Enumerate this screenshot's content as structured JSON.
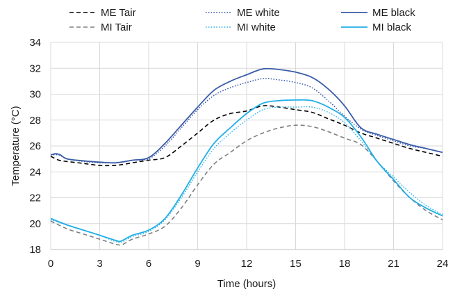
{
  "chart_data": {
    "type": "line",
    "title": "",
    "xlabel": "Time (hours)",
    "ylabel": "Temperature (°C)",
    "xlim": [
      0,
      24
    ],
    "ylim": [
      18,
      34
    ],
    "xticks": [
      0,
      3,
      6,
      9,
      12,
      15,
      18,
      21,
      24
    ],
    "yticks": [
      18,
      20,
      22,
      24,
      26,
      28,
      30,
      32,
      34
    ],
    "grid": "vertical",
    "legend_position": "top",
    "series": [
      {
        "name": "ME Tair",
        "color": "#000000",
        "dash": "dashed",
        "points": [
          [
            0,
            25.2
          ],
          [
            0.5,
            24.9
          ],
          [
            1,
            24.8
          ],
          [
            2,
            24.65
          ],
          [
            3,
            24.5
          ],
          [
            4,
            24.5
          ],
          [
            5,
            24.7
          ],
          [
            6,
            24.9
          ],
          [
            7,
            25.1
          ],
          [
            8,
            26.0
          ],
          [
            9,
            27.0
          ],
          [
            10,
            28.0
          ],
          [
            11,
            28.5
          ],
          [
            12,
            28.7
          ],
          [
            13,
            29.1
          ],
          [
            14,
            29.0
          ],
          [
            15,
            28.8
          ],
          [
            16,
            28.6
          ],
          [
            17,
            28.1
          ],
          [
            18,
            27.6
          ],
          [
            19,
            27.0
          ],
          [
            20,
            26.6
          ],
          [
            21,
            26.2
          ],
          [
            22,
            25.8
          ],
          [
            23,
            25.5
          ],
          [
            24,
            25.2
          ]
        ]
      },
      {
        "name": "MI Tair",
        "color": "#7f7f7f",
        "dash": "dashed",
        "points": [
          [
            0,
            20.2
          ],
          [
            1,
            19.6
          ],
          [
            2,
            19.2
          ],
          [
            3,
            18.8
          ],
          [
            4,
            18.4
          ],
          [
            4.4,
            18.4
          ],
          [
            5,
            18.8
          ],
          [
            6,
            19.2
          ],
          [
            7,
            19.8
          ],
          [
            8,
            21.2
          ],
          [
            9,
            23.0
          ],
          [
            10,
            24.6
          ],
          [
            11,
            25.5
          ],
          [
            12,
            26.4
          ],
          [
            13,
            27.0
          ],
          [
            14,
            27.4
          ],
          [
            15,
            27.6
          ],
          [
            16,
            27.5
          ],
          [
            17,
            27.1
          ],
          [
            18,
            26.6
          ],
          [
            19,
            26.1
          ],
          [
            20,
            24.8
          ],
          [
            21,
            23.3
          ],
          [
            22,
            22.0
          ],
          [
            23,
            21.0
          ],
          [
            24,
            20.3
          ]
        ]
      },
      {
        "name": "ME white",
        "color": "#2f4fa8",
        "dash": "dotted",
        "points": [
          [
            0,
            25.3
          ],
          [
            0.5,
            25.3
          ],
          [
            1,
            25.0
          ],
          [
            2,
            24.8
          ],
          [
            3,
            24.7
          ],
          [
            4,
            24.7
          ],
          [
            5,
            24.9
          ],
          [
            6,
            25.0
          ],
          [
            7,
            26.0
          ],
          [
            8,
            27.4
          ],
          [
            9,
            28.8
          ],
          [
            10,
            29.9
          ],
          [
            11,
            30.5
          ],
          [
            12,
            30.9
          ],
          [
            13,
            31.2
          ],
          [
            14,
            31.1
          ],
          [
            15,
            30.9
          ],
          [
            16,
            30.5
          ],
          [
            17,
            29.5
          ],
          [
            18,
            28.3
          ],
          [
            19,
            27.3
          ],
          [
            20,
            26.8
          ],
          [
            21,
            26.4
          ],
          [
            22,
            26.0
          ],
          [
            23,
            25.8
          ],
          [
            24,
            25.5
          ]
        ]
      },
      {
        "name": "MI white",
        "color": "#2ab5e8",
        "dash": "dotted",
        "points": [
          [
            0,
            20.3
          ],
          [
            1,
            19.9
          ],
          [
            2,
            19.5
          ],
          [
            3,
            19.1
          ],
          [
            4,
            18.6
          ],
          [
            4.4,
            18.6
          ],
          [
            5,
            19.0
          ],
          [
            6,
            19.4
          ],
          [
            7,
            20.3
          ],
          [
            8,
            22.0
          ],
          [
            9,
            24.0
          ],
          [
            10,
            25.8
          ],
          [
            11,
            27.0
          ],
          [
            12,
            28.0
          ],
          [
            13,
            28.8
          ],
          [
            14,
            29.0
          ],
          [
            15,
            29.0
          ],
          [
            16,
            29.0
          ],
          [
            17,
            28.6
          ],
          [
            18,
            27.8
          ],
          [
            19,
            26.4
          ],
          [
            20,
            24.8
          ],
          [
            21,
            23.6
          ],
          [
            22,
            22.4
          ],
          [
            23,
            21.4
          ],
          [
            24,
            20.7
          ]
        ]
      },
      {
        "name": "ME black",
        "color": "#3a5ca8",
        "dash": "solid",
        "points": [
          [
            0,
            25.3
          ],
          [
            0.3,
            25.4
          ],
          [
            0.6,
            25.3
          ],
          [
            1,
            25.0
          ],
          [
            2,
            24.85
          ],
          [
            3,
            24.75
          ],
          [
            4,
            24.7
          ],
          [
            5,
            24.9
          ],
          [
            6,
            25.1
          ],
          [
            7,
            26.2
          ],
          [
            8,
            27.6
          ],
          [
            9,
            29.0
          ],
          [
            10,
            30.3
          ],
          [
            11,
            31.0
          ],
          [
            12,
            31.5
          ],
          [
            13,
            31.95
          ],
          [
            14,
            31.9
          ],
          [
            15,
            31.7
          ],
          [
            16,
            31.3
          ],
          [
            17,
            30.4
          ],
          [
            18,
            29.1
          ],
          [
            19,
            27.4
          ],
          [
            20,
            26.9
          ],
          [
            21,
            26.5
          ],
          [
            22,
            26.1
          ],
          [
            23,
            25.8
          ],
          [
            24,
            25.5
          ]
        ]
      },
      {
        "name": "MI black",
        "color": "#1eaee6",
        "dash": "solid",
        "points": [
          [
            0,
            20.4
          ],
          [
            1,
            19.9
          ],
          [
            2,
            19.5
          ],
          [
            3,
            19.1
          ],
          [
            4,
            18.7
          ],
          [
            4.3,
            18.65
          ],
          [
            5,
            19.1
          ],
          [
            6,
            19.5
          ],
          [
            7,
            20.4
          ],
          [
            8,
            22.2
          ],
          [
            9,
            24.3
          ],
          [
            10,
            26.2
          ],
          [
            11,
            27.4
          ],
          [
            12,
            28.5
          ],
          [
            13,
            29.3
          ],
          [
            14,
            29.5
          ],
          [
            15,
            29.55
          ],
          [
            16,
            29.5
          ],
          [
            17,
            29.0
          ],
          [
            18,
            28.2
          ],
          [
            19,
            26.7
          ],
          [
            20,
            24.8
          ],
          [
            21,
            23.4
          ],
          [
            22,
            22.0
          ],
          [
            23,
            21.2
          ],
          [
            24,
            20.6
          ]
        ]
      }
    ]
  }
}
